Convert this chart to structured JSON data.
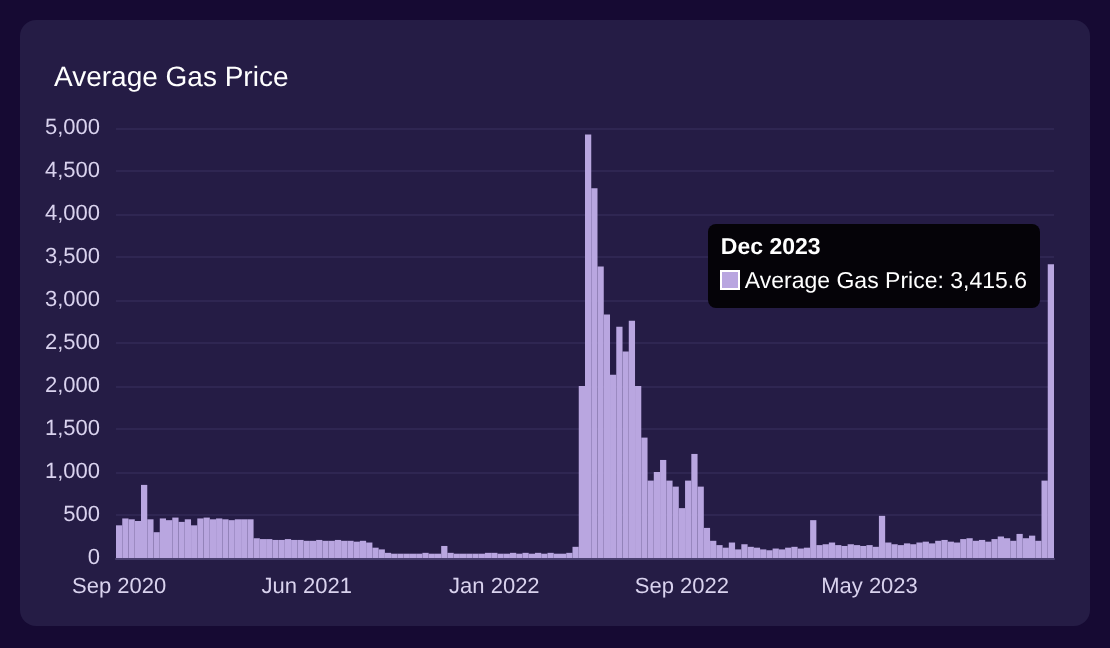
{
  "chart_data": {
    "type": "bar",
    "title": "Average Gas Price",
    "categories": [
      "Sep 2020",
      null,
      null,
      null,
      null,
      null,
      null,
      null,
      null,
      null,
      null,
      null,
      null,
      null,
      null,
      null,
      null,
      null,
      null,
      null,
      null,
      null,
      null,
      null,
      null,
      null,
      null,
      null,
      null,
      null,
      "Jun 2021",
      null,
      null,
      null,
      null,
      null,
      null,
      null,
      null,
      null,
      null,
      null,
      null,
      null,
      null,
      null,
      null,
      null,
      null,
      null,
      null,
      null,
      null,
      null,
      null,
      null,
      null,
      null,
      null,
      null,
      "Jan 2022",
      null,
      null,
      null,
      null,
      null,
      null,
      null,
      null,
      null,
      null,
      null,
      null,
      null,
      null,
      null,
      null,
      null,
      null,
      null,
      null,
      null,
      null,
      null,
      null,
      null,
      null,
      null,
      null,
      null,
      "Sep 2022",
      null,
      null,
      null,
      null,
      null,
      null,
      null,
      null,
      null,
      null,
      null,
      null,
      null,
      null,
      null,
      null,
      null,
      null,
      null,
      null,
      null,
      null,
      null,
      null,
      null,
      null,
      null,
      null,
      null,
      "May 2023",
      null,
      null,
      null,
      null,
      null,
      null,
      null,
      null,
      null,
      null,
      null,
      null,
      null,
      null,
      null,
      null,
      null,
      null,
      null,
      null,
      null,
      null,
      null,
      null,
      null,
      null,
      null,
      null,
      null
    ],
    "series": [
      {
        "color": "#b9a6e0",
        "values": [
          380,
          460,
          450,
          430,
          850,
          450,
          300,
          460,
          440,
          470,
          420,
          450,
          380,
          460,
          470,
          450,
          460,
          450,
          440,
          450,
          450,
          450,
          230,
          220,
          220,
          210,
          210,
          220,
          210,
          210,
          200,
          200,
          210,
          200,
          200,
          210,
          200,
          200,
          190,
          200,
          180,
          120,
          100,
          60,
          50,
          50,
          50,
          50,
          50,
          60,
          50,
          50,
          140,
          60,
          50,
          50,
          50,
          50,
          50,
          60,
          60,
          50,
          50,
          60,
          50,
          60,
          50,
          60,
          50,
          60,
          50,
          50,
          60,
          130,
          2000,
          4925,
          4300,
          3390,
          2830,
          2130,
          2690,
          2400,
          2760,
          2000,
          1400,
          900,
          1000,
          1140,
          900,
          830,
          580,
          900,
          1210,
          830,
          350,
          200,
          150,
          120,
          180,
          100,
          160,
          130,
          120,
          100,
          90,
          110,
          100,
          120,
          130,
          110,
          120,
          440,
          150,
          160,
          180,
          150,
          140,
          160,
          150,
          140,
          150,
          130,
          490,
          180,
          160,
          150,
          170,
          160,
          180,
          190,
          170,
          200,
          210,
          190,
          180,
          220,
          230,
          200,
          210,
          190,
          220,
          250,
          230,
          200,
          280,
          230,
          260,
          200,
          900,
          3415.6
        ]
      }
    ],
    "ylim": [
      0,
      5000
    ],
    "yticks": [
      0,
      500,
      {
        "value": 1000,
        "label": "1,000"
      },
      {
        "value": 1500,
        "label": "1,500"
      },
      {
        "value": 2000,
        "label": "2,000"
      },
      {
        "value": 2500,
        "label": "2,500"
      },
      {
        "value": 3000,
        "label": "3,000"
      },
      {
        "value": 3500,
        "label": "3,500"
      },
      {
        "value": 4000,
        "label": "4,000"
      },
      {
        "value": 4500,
        "label": "4,500"
      },
      {
        "value": 5000,
        "label": "5,000"
      }
    ],
    "grid": "y",
    "annotations": [
      "Dec 2023",
      "Average Gas Price: 3,415.6"
    ]
  }
}
